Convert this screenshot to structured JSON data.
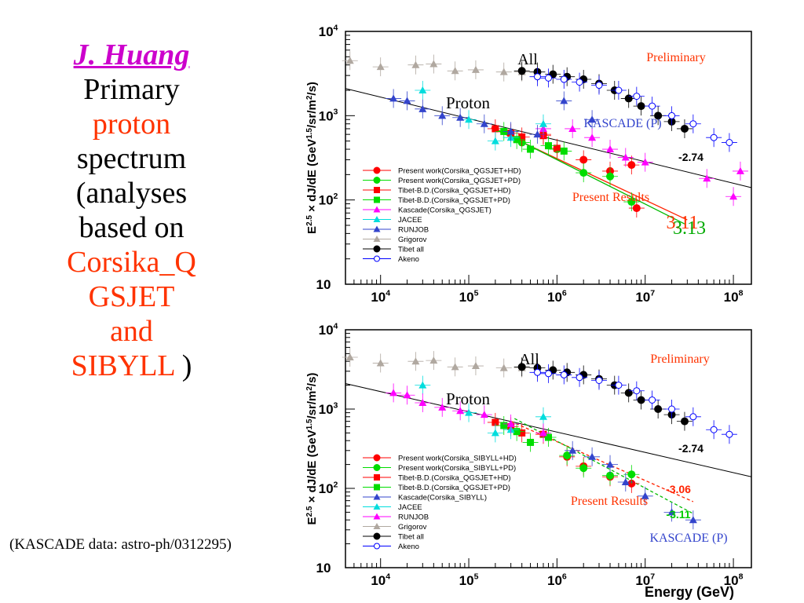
{
  "slide": {
    "author": "J. Huang",
    "title_lines": [
      {
        "text": "Primary",
        "color": "#000000"
      },
      {
        "text": "proton",
        "color": "#ff3300"
      },
      {
        "text": "spectrum",
        "color": "#000000"
      },
      {
        "text": "(analyses",
        "color": "#000000"
      },
      {
        "text": "based on",
        "color": "#000000"
      },
      {
        "text": "Corsika_Q",
        "color": "#ff3300"
      },
      {
        "text": "GSJET",
        "color": "#ff3300"
      },
      {
        "text": "and",
        "color": "#ff3300"
      }
    ],
    "last_line_red": "SIBYLL",
    "last_line_black": " )",
    "note": "(KASCADE data:  astro-ph/0312295)"
  },
  "chart_data": [
    {
      "type": "scatter",
      "xscale": "log",
      "yscale": "log",
      "xlim": [
        4000,
        160000000
      ],
      "ylim": [
        10,
        10000
      ],
      "x_ticks": [
        "10^4",
        "10^5",
        "10^6",
        "10^7",
        "10^8"
      ],
      "y_ticks": [
        "10",
        "10^2",
        "10^3",
        "10^4"
      ],
      "ylabel": "E^2.5 × dJ/dE (GeV^1.5/sr/m^2/s)",
      "xlabel": "",
      "annotations": {
        "all": "All",
        "proton": "Proton",
        "preliminary": "Preliminary",
        "kascade": "KASCADE (P)",
        "present": "Present Results",
        "slope_ref": "-2.74",
        "slope_red": "3.11",
        "slope_green": "3.13"
      },
      "legend": [
        "Present work(Corsika_QGSJET+HD)",
        "Present work(Corsika_QGSJET+PD)",
        "Tibet-B.D.(Corsika_QGSJET+HD)",
        "Tibet-B.D.(Corsika_QGSJET+PD)",
        "Kascade(Corsika_QGSJET)",
        "JACEE",
        "RUNJOB",
        "Grigorov",
        "Tibet all",
        "Akeno"
      ],
      "series": [
        {
          "name": "Present work(Corsika_QGSJET+HD)",
          "marker": "circle",
          "color": "#ff0000",
          "points": [
            [
              700000,
              600
            ],
            [
              2000000,
              300
            ],
            [
              4000000,
              220
            ],
            [
              7000000,
              260
            ],
            [
              8000000,
              80
            ]
          ]
        },
        {
          "name": "Present work(Corsika_QGSJET+PD)",
          "marker": "circle",
          "color": "#00dd00",
          "points": [
            [
              400000,
              480
            ],
            [
              1000000,
              400
            ],
            [
              2000000,
              210
            ],
            [
              4000000,
              190
            ],
            [
              7000000,
              95
            ]
          ]
        },
        {
          "name": "Tibet-B.D.(Corsika_QGSJET+HD)",
          "marker": "square",
          "color": "#ff0000",
          "points": [
            [
              200000,
              700
            ],
            [
              300000,
              620
            ],
            [
              400000,
              560
            ],
            [
              700000,
              580
            ],
            [
              1000000,
              410
            ]
          ]
        },
        {
          "name": "Tibet-B.D.(Corsika_QGSJET+PD)",
          "marker": "square",
          "color": "#00dd00",
          "points": [
            [
              250000,
              650
            ],
            [
              350000,
              520
            ],
            [
              500000,
              400
            ],
            [
              800000,
              440
            ],
            [
              1200000,
              380
            ]
          ]
        },
        {
          "name": "Kascade(Corsika_QGSJET)",
          "marker": "triangle",
          "color": "#ff00ff",
          "points": [
            [
              700000,
              700
            ],
            [
              1500000,
              700
            ],
            [
              2500000,
              550
            ],
            [
              4000000,
              400
            ],
            [
              6000000,
              320
            ],
            [
              10000000,
              280
            ],
            [
              50000000,
              180
            ],
            [
              100000000,
              110
            ],
            [
              120000000,
              220
            ]
          ]
        },
        {
          "name": "JACEE",
          "marker": "triangle",
          "color": "#00dddd",
          "points": [
            [
              30000,
              2000
            ],
            [
              100000,
              900
            ],
            [
              200000,
              500
            ],
            [
              300000,
              550
            ],
            [
              700000,
              800
            ]
          ]
        },
        {
          "name": "RUNJOB",
          "marker": "triangle",
          "color": "#3344cc",
          "points": [
            [
              14000,
              1600
            ],
            [
              20000,
              1500
            ],
            [
              30000,
              1200
            ],
            [
              50000,
              1000
            ],
            [
              80000,
              950
            ],
            [
              150000,
              800
            ],
            [
              300000,
              650
            ],
            [
              600000,
              600
            ],
            [
              1200000,
              1500
            ],
            [
              2500000,
              900
            ]
          ]
        },
        {
          "name": "Grigorov",
          "marker": "triangle",
          "color": "#b0a8a0",
          "points": [
            [
              4500,
              4500
            ],
            [
              10000,
              3800
            ],
            [
              25000,
              4000
            ],
            [
              40000,
              4100
            ],
            [
              70000,
              3400
            ],
            [
              120000,
              3500
            ],
            [
              250000,
              3300
            ],
            [
              400000,
              3300
            ]
          ]
        },
        {
          "name": "Tibet all",
          "marker": "circle",
          "color": "#000000",
          "points": [
            [
              400000,
              3400
            ],
            [
              600000,
              3300
            ],
            [
              900000,
              3100
            ],
            [
              1300000,
              2900
            ],
            [
              2000000,
              2700
            ],
            [
              3000000,
              2400
            ],
            [
              4500000,
              2000
            ],
            [
              6500000,
              1600
            ],
            [
              9000000,
              1300
            ],
            [
              14000000,
              1000
            ],
            [
              20000000,
              850
            ],
            [
              28000000,
              700
            ]
          ]
        },
        {
          "name": "Akeno",
          "marker": "opencircle",
          "color": "#0000ff",
          "points": [
            [
              600000,
              2900
            ],
            [
              800000,
              2800
            ],
            [
              1200000,
              2700
            ],
            [
              1800000,
              2500
            ],
            [
              3000000,
              2300
            ],
            [
              5000000,
              2000
            ],
            [
              8000000,
              1700
            ],
            [
              12000000,
              1300
            ],
            [
              20000000,
              1000
            ],
            [
              35000000,
              800
            ],
            [
              60000000,
              550
            ],
            [
              90000000,
              480
            ]
          ]
        }
      ]
    },
    {
      "type": "scatter",
      "xscale": "log",
      "yscale": "log",
      "xlim": [
        4000,
        160000000
      ],
      "ylim": [
        10,
        10000
      ],
      "x_ticks": [
        "10^4",
        "10^5",
        "10^6",
        "10^7",
        "10^8"
      ],
      "y_ticks": [
        "10",
        "10^2",
        "10^3",
        "10^4"
      ],
      "ylabel": "E^2.5 × dJ/dE (GeV^1.5/sr/m^2/s)",
      "xlabel": "Energy (GeV)",
      "annotations": {
        "all": "All",
        "proton": "Proton",
        "preliminary": "Preliminary",
        "kascade": "KASCADE (P)",
        "present": "Present Results",
        "slope_ref": "-2.74",
        "slope_red": "-3.06",
        "slope_green": "-3.11"
      },
      "legend": [
        "Present work(Corsika_SIBYLL+HD)",
        "Present work(Corsika_SIBYLL+PD)",
        "Tibet-B.D.(Corsika_QGSJET+HD)",
        "Tibet-B.D.(Corsika_QGSJET+PD)",
        "Kascade(Corsika_SIBYLL)",
        "JACEE",
        "RUNJOB",
        "Grigorov",
        "Tibet all",
        "Akeno"
      ],
      "series": [
        {
          "name": "Present work(Corsika_SIBYLL+HD)",
          "marker": "circle",
          "color": "#ff0000",
          "points": [
            [
              1300000,
              250
            ],
            [
              2000000,
              190
            ],
            [
              4000000,
              140
            ],
            [
              7000000,
              115
            ]
          ]
        },
        {
          "name": "Present work(Corsika_SIBYLL+PD)",
          "marker": "circle",
          "color": "#00dd00",
          "points": [
            [
              1300000,
              260
            ],
            [
              2000000,
              180
            ],
            [
              4000000,
              145
            ],
            [
              7000000,
              150
            ]
          ]
        },
        {
          "name": "Tibet-B.D.(Corsika_QGSJET+HD)",
          "marker": "square",
          "color": "#ff0000",
          "points": [
            [
              200000,
              680
            ],
            [
              300000,
              600
            ],
            [
              400000,
              500
            ],
            [
              700000,
              480
            ]
          ]
        },
        {
          "name": "Tibet-B.D.(Corsika_QGSJET+PD)",
          "marker": "square",
          "color": "#00dd00",
          "points": [
            [
              250000,
              620
            ],
            [
              350000,
              520
            ],
            [
              500000,
              380
            ],
            [
              800000,
              440
            ]
          ]
        },
        {
          "name": "Kascade(Corsika_SIBYLL)",
          "marker": "triangle",
          "color": "#3344cc",
          "points": [
            [
              1500000,
              300
            ],
            [
              2500000,
              250
            ],
            [
              4000000,
              200
            ],
            [
              6000000,
              120
            ],
            [
              10000000,
              80
            ],
            [
              20000000,
              50
            ],
            [
              35000000,
              40
            ]
          ]
        },
        {
          "name": "JACEE",
          "marker": "triangle",
          "color": "#00dddd",
          "points": [
            [
              30000,
              2000
            ],
            [
              100000,
              900
            ],
            [
              200000,
              500
            ],
            [
              300000,
              550
            ],
            [
              700000,
              800
            ]
          ]
        },
        {
          "name": "RUNJOB",
          "marker": "triangle",
          "color": "#ff00ff",
          "points": [
            [
              14000,
              1600
            ],
            [
              20000,
              1500
            ],
            [
              30000,
              1200
            ],
            [
              50000,
              1050
            ],
            [
              80000,
              950
            ],
            [
              150000,
              850
            ],
            [
              300000,
              650
            ],
            [
              700000,
              500
            ]
          ]
        },
        {
          "name": "Grigorov",
          "marker": "triangle",
          "color": "#b0a8a0",
          "points": [
            [
              4500,
              4500
            ],
            [
              10000,
              3800
            ],
            [
              25000,
              4000
            ],
            [
              40000,
              4100
            ],
            [
              70000,
              3400
            ],
            [
              120000,
              3500
            ],
            [
              250000,
              3300
            ],
            [
              400000,
              3300
            ]
          ]
        },
        {
          "name": "Tibet all",
          "marker": "circle",
          "color": "#000000",
          "points": [
            [
              400000,
              3400
            ],
            [
              600000,
              3300
            ],
            [
              900000,
              3100
            ],
            [
              1300000,
              2900
            ],
            [
              2000000,
              2700
            ],
            [
              3000000,
              2400
            ],
            [
              4500000,
              2000
            ],
            [
              6500000,
              1600
            ],
            [
              9000000,
              1300
            ],
            [
              14000000,
              1000
            ],
            [
              20000000,
              850
            ],
            [
              28000000,
              700
            ]
          ]
        },
        {
          "name": "Akeno",
          "marker": "opencircle",
          "color": "#0000ff",
          "points": [
            [
              600000,
              2900
            ],
            [
              800000,
              2800
            ],
            [
              1200000,
              2700
            ],
            [
              1800000,
              2500
            ],
            [
              3000000,
              2300
            ],
            [
              5000000,
              2000
            ],
            [
              8000000,
              1700
            ],
            [
              12000000,
              1300
            ],
            [
              20000000,
              1000
            ],
            [
              35000000,
              800
            ],
            [
              60000000,
              550
            ],
            [
              90000000,
              480
            ]
          ]
        }
      ]
    }
  ]
}
